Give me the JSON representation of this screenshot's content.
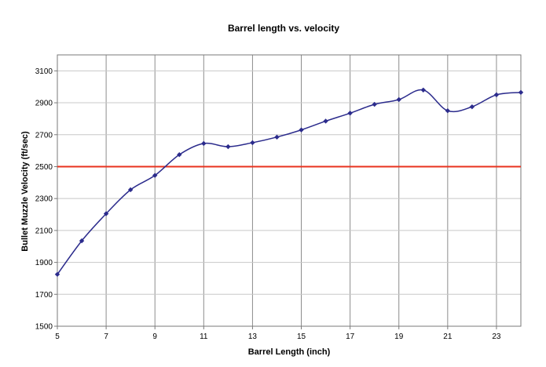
{
  "chart_data": {
    "type": "line",
    "title": "Barrel length vs. velocity",
    "xlabel": "Barrel Length (inch)",
    "ylabel": "Bullet Muzzle Velocity (ft/sec)",
    "xlim": [
      5,
      24
    ],
    "ylim": [
      1500,
      3200
    ],
    "xticks": [
      5,
      7,
      9,
      11,
      13,
      15,
      17,
      19,
      21,
      23
    ],
    "yticks": [
      1500,
      1700,
      1900,
      2100,
      2300,
      2500,
      2700,
      2900,
      3100
    ],
    "grid": true,
    "series": [
      {
        "x": [
          5,
          6,
          7,
          8,
          9,
          10,
          11,
          12,
          13,
          14,
          15,
          16,
          17,
          18,
          19,
          20,
          21,
          22,
          23,
          24
        ],
        "values": [
          1825,
          2035,
          2205,
          2355,
          2445,
          2575,
          2645,
          2625,
          2650,
          2685,
          2730,
          2785,
          2835,
          2890,
          2920,
          2980,
          2850,
          2875,
          2950,
          2965
        ],
        "color": "#2b2b8c"
      }
    ],
    "reference_line": {
      "y": 2500,
      "color": "#e8321e"
    }
  }
}
